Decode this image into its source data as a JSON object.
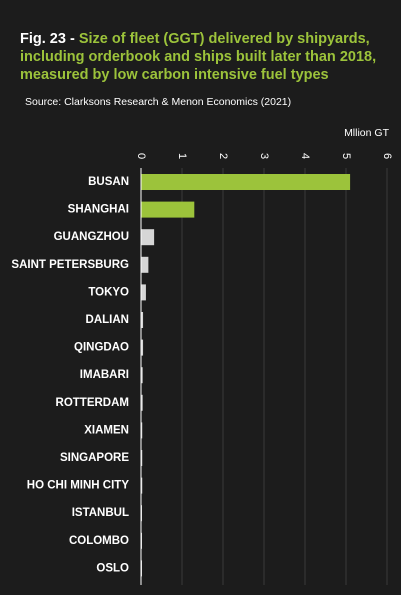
{
  "figure": {
    "number": "Fig. 23 -",
    "title": "Size of fleet (GGT) delivered by shipyards, including orderbook and ships built later than 2018, measured by low carbon intensive fuel types",
    "source": "Source: Clarksons Research & Menon Economics (2021)"
  },
  "chart_data": {
    "type": "bar",
    "orientation": "horizontal",
    "unit_label": "Mllion GT",
    "categories": [
      "BUSAN",
      "SHANGHAI",
      "GUANGZHOU",
      "SAINT PETERSBURG",
      "TOKYO",
      "DALIAN",
      "QINGDAO",
      "IMABARI",
      "ROTTERDAM",
      "XIAMEN",
      "SINGAPORE",
      "HO CHI MINH CITY",
      "ISTANBUL",
      "COLOMBO",
      "OSLO"
    ],
    "values": [
      5.1,
      1.3,
      0.32,
      0.18,
      0.12,
      0.05,
      0.05,
      0.04,
      0.04,
      0.03,
      0.03,
      0.03,
      0.02,
      0.02,
      0.02
    ],
    "xlim": [
      0,
      6
    ],
    "x_ticks": [
      0,
      1,
      2,
      3,
      4,
      5,
      6
    ],
    "xlabel": "",
    "ylabel": "",
    "grid": "vertical",
    "colors": {
      "highlight": "#9cc33b",
      "default": "#d6d6d6",
      "grid": "#3a3a3a",
      "axis": "#ffffff"
    },
    "highlight_categories": [
      "BUSAN",
      "SHANGHAI"
    ]
  }
}
